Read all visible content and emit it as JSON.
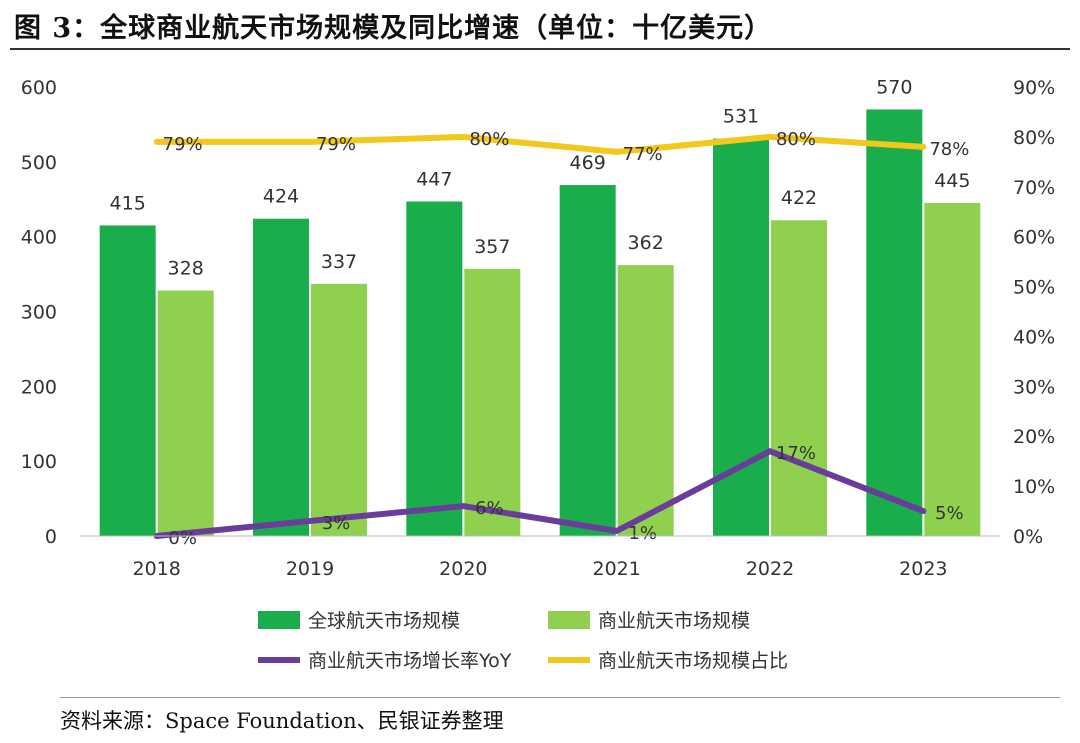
{
  "figure_title": "图 3：全球商业航天市场规模及同比增速（单位：十亿美元）",
  "source_note": "资料来源：Space Foundation、民银证券整理",
  "chart_data": {
    "type": "bar",
    "categories": [
      "2018",
      "2019",
      "2020",
      "2021",
      "2022",
      "2023"
    ],
    "series": [
      {
        "name": "全球航天市场规模",
        "type": "bar",
        "axis": "left",
        "color": "#1aad4b",
        "values": [
          415,
          424,
          447,
          469,
          531,
          570
        ],
        "labels": [
          "415",
          "424",
          "447",
          "469",
          "531",
          "570"
        ]
      },
      {
        "name": "商业航天市场规模",
        "type": "bar",
        "axis": "left",
        "color": "#8fd14f",
        "values": [
          328,
          337,
          357,
          362,
          422,
          445
        ],
        "labels": [
          "328",
          "337",
          "357",
          "362",
          "422",
          "445"
        ]
      },
      {
        "name": "商业航天市场增长率YoY",
        "type": "line",
        "axis": "right",
        "color": "#6a3d9a",
        "values": [
          0,
          3,
          6,
          1,
          17,
          5
        ],
        "labels": [
          "0%",
          "3%",
          "6%",
          "1%",
          "17%",
          "5%"
        ]
      },
      {
        "name": "商业航天市场规模占比",
        "type": "line",
        "axis": "right",
        "color": "#f2c81c",
        "values": [
          79,
          79,
          80,
          77,
          80,
          78
        ],
        "labels": [
          "79%",
          "79%",
          "80%",
          "77%",
          "80%",
          "78%"
        ]
      }
    ],
    "y_left": {
      "min": 0,
      "max": 600,
      "ticks": [
        "0",
        "100",
        "200",
        "300",
        "400",
        "500",
        "600"
      ]
    },
    "y_right": {
      "min": 0,
      "max": 90,
      "ticks": [
        "0%",
        "10%",
        "20%",
        "30%",
        "40%",
        "50%",
        "60%",
        "70%",
        "80%",
        "90%"
      ]
    },
    "grid": false,
    "legend_position": "bottom"
  }
}
